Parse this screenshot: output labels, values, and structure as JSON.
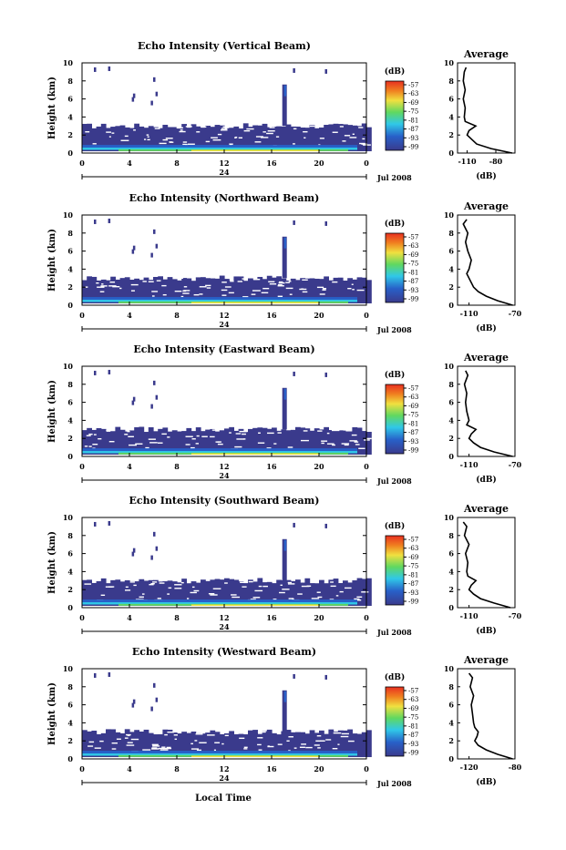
{
  "common": {
    "ylabel": "Height (km)",
    "y_ticks": [
      "0",
      "2",
      "4",
      "6",
      "8",
      "10"
    ],
    "x_ticks": [
      "0",
      "4",
      "8",
      "12",
      "16",
      "20",
      "0"
    ],
    "day_label": "24",
    "month_label": "Jul 2008",
    "xlabel": "Local Time",
    "colorbar_unit": "(dB)",
    "colorbar_ticks": [
      "-57",
      "-63",
      "-69",
      "-75",
      "-81",
      "-87",
      "-93",
      "-99"
    ],
    "avg_title": "Average",
    "avg_xlabel": "(dB)",
    "colors": {
      "dark_blue": "#3a3a8c",
      "blue": "#2860c8",
      "cyan": "#30c8e8",
      "green": "#60d860",
      "yellow": "#f0e040",
      "red": "#e83020"
    }
  },
  "panels": [
    {
      "title": "Echo Intensity (Vertical Beam)",
      "avg_ticks": [
        "-110",
        "-80"
      ]
    },
    {
      "title": "Echo Intensity (Northward Beam)",
      "avg_ticks": [
        "-110",
        "-70"
      ]
    },
    {
      "title": "Echo Intensity (Eastward Beam)",
      "avg_ticks": [
        "-110",
        "-70"
      ]
    },
    {
      "title": "Echo Intensity (Southward Beam)",
      "avg_ticks": [
        "-110",
        "-70"
      ]
    },
    {
      "title": "Echo Intensity (Westward Beam)",
      "avg_ticks": [
        "-120",
        "-80"
      ]
    }
  ],
  "chart_data": [
    {
      "type": "heatmap",
      "title": "Echo Intensity (Vertical Beam)",
      "ylabel": "Height (km)",
      "ylim": [
        0,
        10
      ],
      "xlim": [
        0,
        24
      ],
      "x_unit": "Local Time (h)",
      "colorbar_unit": "dB",
      "colorbar_range": [
        -99,
        -57
      ],
      "average_profile": {
        "xlim": [
          -120,
          -60
        ],
        "height_km": [
          0,
          0.5,
          1,
          1.5,
          2,
          2.5,
          3,
          3.5,
          4,
          5,
          6,
          7,
          8,
          9,
          9.5
        ],
        "echo_db": [
          -63,
          -85,
          -100,
          -105,
          -110,
          -108,
          -101,
          -112,
          -113,
          -112,
          -114,
          -112,
          -114,
          -113,
          -111
        ]
      }
    },
    {
      "type": "heatmap",
      "title": "Echo Intensity (Northward Beam)",
      "ylabel": "Height (km)",
      "ylim": [
        0,
        10
      ],
      "xlim": [
        0,
        24
      ],
      "x_unit": "Local Time (h)",
      "colorbar_unit": "dB",
      "colorbar_range": [
        -99,
        -57
      ],
      "average_profile": {
        "xlim": [
          -120,
          -70
        ],
        "height_km": [
          0,
          0.5,
          1,
          1.5,
          2,
          2.5,
          3,
          3.5,
          4,
          5,
          6,
          7,
          8,
          9,
          9.5
        ],
        "echo_db": [
          -72,
          -85,
          -95,
          -102,
          -106,
          -108,
          -110,
          -112,
          -110,
          -108,
          -111,
          -113,
          -111,
          -115,
          -112
        ]
      }
    },
    {
      "type": "heatmap",
      "title": "Echo Intensity (Eastward Beam)",
      "ylabel": "Height (km)",
      "ylim": [
        0,
        10
      ],
      "xlim": [
        0,
        24
      ],
      "x_unit": "Local Time (h)",
      "colorbar_unit": "dB",
      "colorbar_range": [
        -99,
        -57
      ],
      "average_profile": {
        "xlim": [
          -120,
          -70
        ],
        "height_km": [
          0,
          0.5,
          1,
          1.5,
          2,
          2.5,
          3,
          3.5,
          4,
          5,
          6,
          7,
          8,
          9,
          9.5
        ],
        "echo_db": [
          -72,
          -88,
          -100,
          -106,
          -110,
          -108,
          -104,
          -112,
          -110,
          -112,
          -113,
          -112,
          -114,
          -111,
          -113
        ]
      }
    },
    {
      "type": "heatmap",
      "title": "Echo Intensity (Southward Beam)",
      "ylabel": "Height (km)",
      "ylim": [
        0,
        10
      ],
      "xlim": [
        0,
        24
      ],
      "x_unit": "Local Time (h)",
      "colorbar_unit": "dB",
      "colorbar_range": [
        -99,
        -57
      ],
      "average_profile": {
        "xlim": [
          -120,
          -70
        ],
        "height_km": [
          0,
          0.5,
          1,
          1.5,
          2,
          2.5,
          3,
          3.5,
          4,
          5,
          6,
          7,
          8,
          9,
          9.5
        ],
        "echo_db": [
          -74,
          -88,
          -100,
          -106,
          -110,
          -108,
          -104,
          -111,
          -112,
          -111,
          -113,
          -110,
          -114,
          -112,
          -115
        ]
      }
    },
    {
      "type": "heatmap",
      "title": "Echo Intensity (Westward Beam)",
      "ylabel": "Height (km)",
      "ylim": [
        0,
        10
      ],
      "xlim": [
        0,
        24
      ],
      "x_unit": "Local Time (h)",
      "colorbar_unit": "dB",
      "colorbar_range": [
        -99,
        -57
      ],
      "average_profile": {
        "xlim": [
          -130,
          -80
        ],
        "height_km": [
          0,
          0.5,
          1,
          1.5,
          2,
          2.5,
          3,
          3.5,
          4,
          5,
          6,
          7,
          8,
          9,
          9.5
        ],
        "echo_db": [
          -82,
          -95,
          -105,
          -112,
          -115,
          -113,
          -112,
          -115,
          -116,
          -117,
          -118,
          -116,
          -119,
          -117,
          -120
        ]
      }
    }
  ]
}
